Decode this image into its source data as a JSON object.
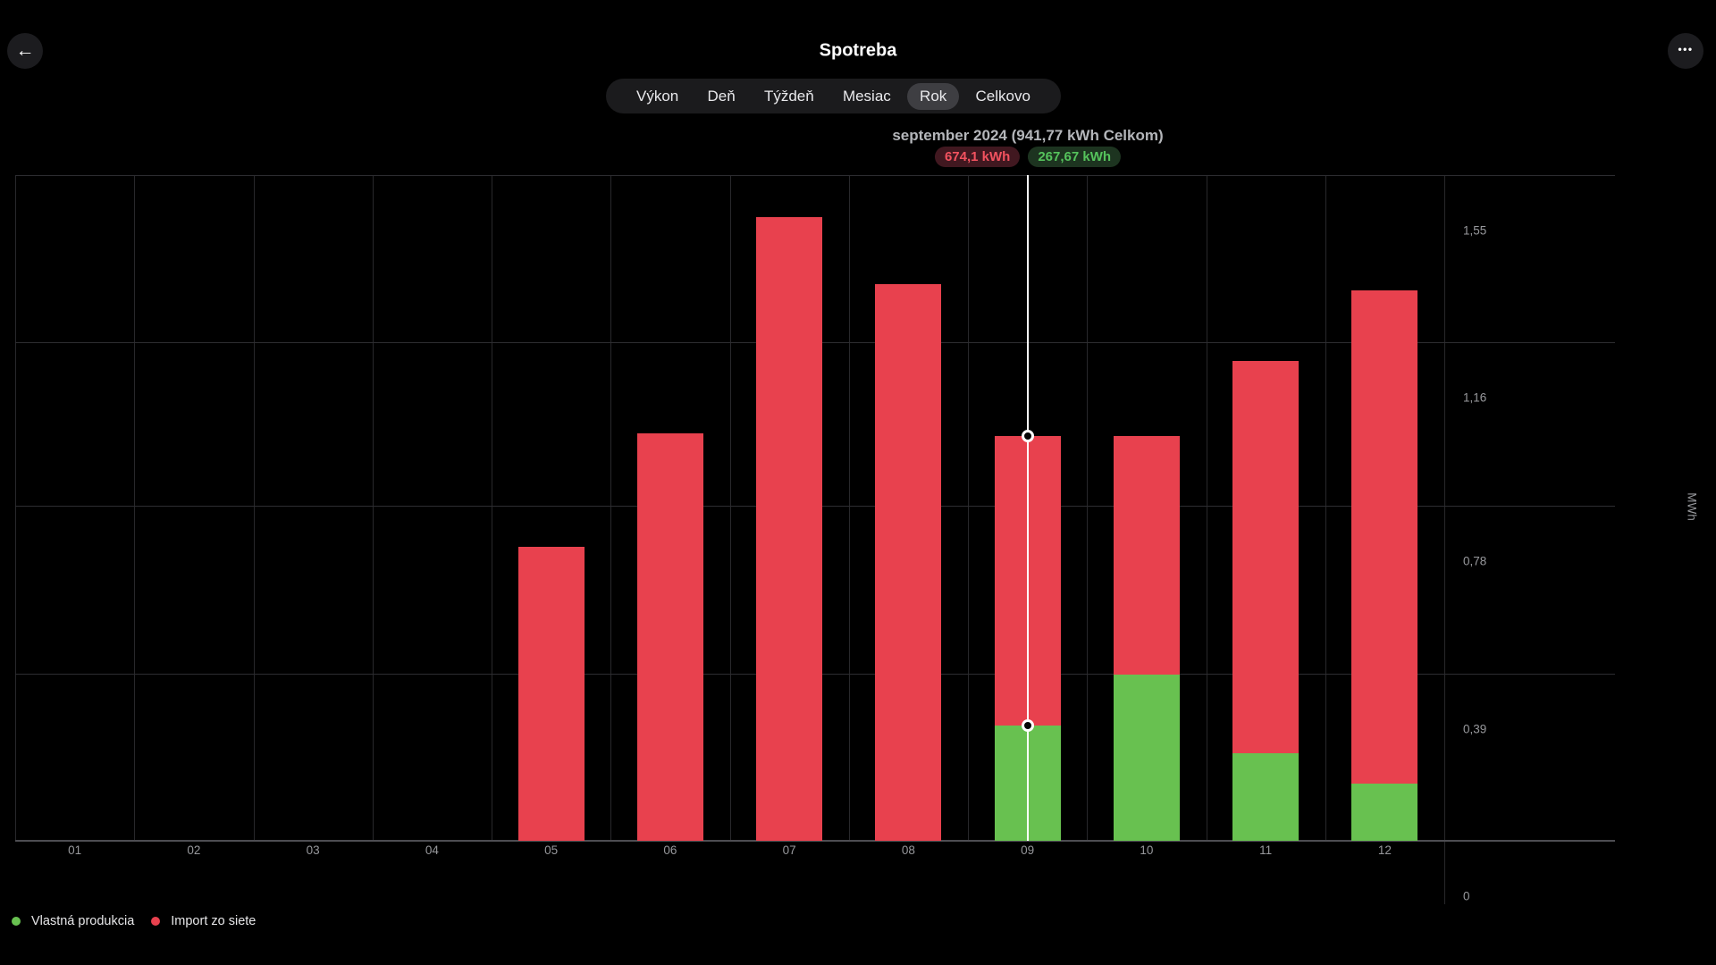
{
  "header": {
    "title": "Spotreba",
    "back_icon": "left-arrow",
    "menu_icon": "ellipsis",
    "back_glyph": "←",
    "menu_glyph": "•••"
  },
  "tabs": {
    "items": [
      {
        "label": "Výkon",
        "selected": false
      },
      {
        "label": "Deň",
        "selected": false
      },
      {
        "label": "Týždeň",
        "selected": false
      },
      {
        "label": "Mesiac",
        "selected": false
      },
      {
        "label": "Rok",
        "selected": true
      },
      {
        "label": "Celkovo",
        "selected": false
      }
    ]
  },
  "selection_info": {
    "subtitle": "september 2024 (941,77 kWh Celkom)",
    "badges": [
      {
        "label": "674,1 kWh",
        "type": "import"
      },
      {
        "label": "267,67 kWh",
        "type": "production"
      }
    ]
  },
  "legend": {
    "items": [
      {
        "label": "Vlastná produkcia",
        "color": "#68c150"
      },
      {
        "label": "Import zo siete",
        "color": "#e8414e"
      }
    ]
  },
  "chart_data": {
    "type": "bar",
    "stacked": true,
    "title": "",
    "xlabel": "",
    "ylabel": "MWh",
    "categories": [
      "01",
      "02",
      "03",
      "04",
      "05",
      "06",
      "07",
      "08",
      "09",
      "10",
      "11",
      "12"
    ],
    "series": [
      {
        "name": "Vlastná produkcia",
        "color": "#68c150",
        "values": [
          0,
          0,
          0,
          0,
          0,
          0,
          0,
          0,
          0.26767,
          0.387,
          0.204,
          0.133
        ]
      },
      {
        "name": "Import zo siete",
        "color": "#e8414e",
        "values": [
          0,
          0,
          0,
          0,
          0.684,
          0.949,
          1.452,
          1.296,
          0.6741,
          0.555,
          0.914,
          1.149
        ]
      }
    ],
    "ylim": [
      0,
      1.55
    ],
    "yticks": [
      {
        "value": 0,
        "label": "0"
      },
      {
        "value": 0.39,
        "label": "0,39"
      },
      {
        "value": 0.78,
        "label": "0,78"
      },
      {
        "value": 1.16,
        "label": "1,16"
      },
      {
        "value": 1.55,
        "label": "1,55"
      }
    ],
    "unit_label": "MWh",
    "grid": true,
    "legend_position": "bottom-left",
    "selected_index": 8,
    "selected_marker_values": [
      0.94177,
      0.26767
    ]
  },
  "colors": {
    "background": "#000000",
    "bar_red": "#e8414e",
    "bar_green": "#68c150",
    "badge_red_text": "#f2525f",
    "badge_red_bg": "#411820",
    "badge_green_text": "#55c35c",
    "badge_green_bg": "#1d3420",
    "grid_h": "#2d2d31",
    "grid_v": "#28282b",
    "axis": "#4d4d52",
    "tick_text": "#97989c",
    "selection_line": "#ffffff"
  }
}
